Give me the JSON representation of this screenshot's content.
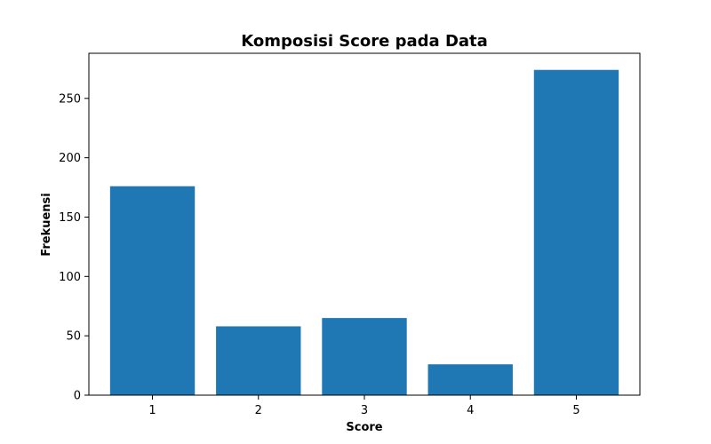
{
  "chart_data": {
    "type": "bar",
    "title": "Komposisi Score pada Data",
    "xlabel": "Score",
    "ylabel": "Frekuensi",
    "categories": [
      "1",
      "2",
      "3",
      "4",
      "5"
    ],
    "values": [
      176,
      58,
      65,
      26,
      274
    ],
    "ylim": [
      0,
      288
    ],
    "yticks": [
      0,
      50,
      100,
      150,
      200,
      250
    ],
    "grid": false,
    "bar_color": "#1f77b4"
  }
}
